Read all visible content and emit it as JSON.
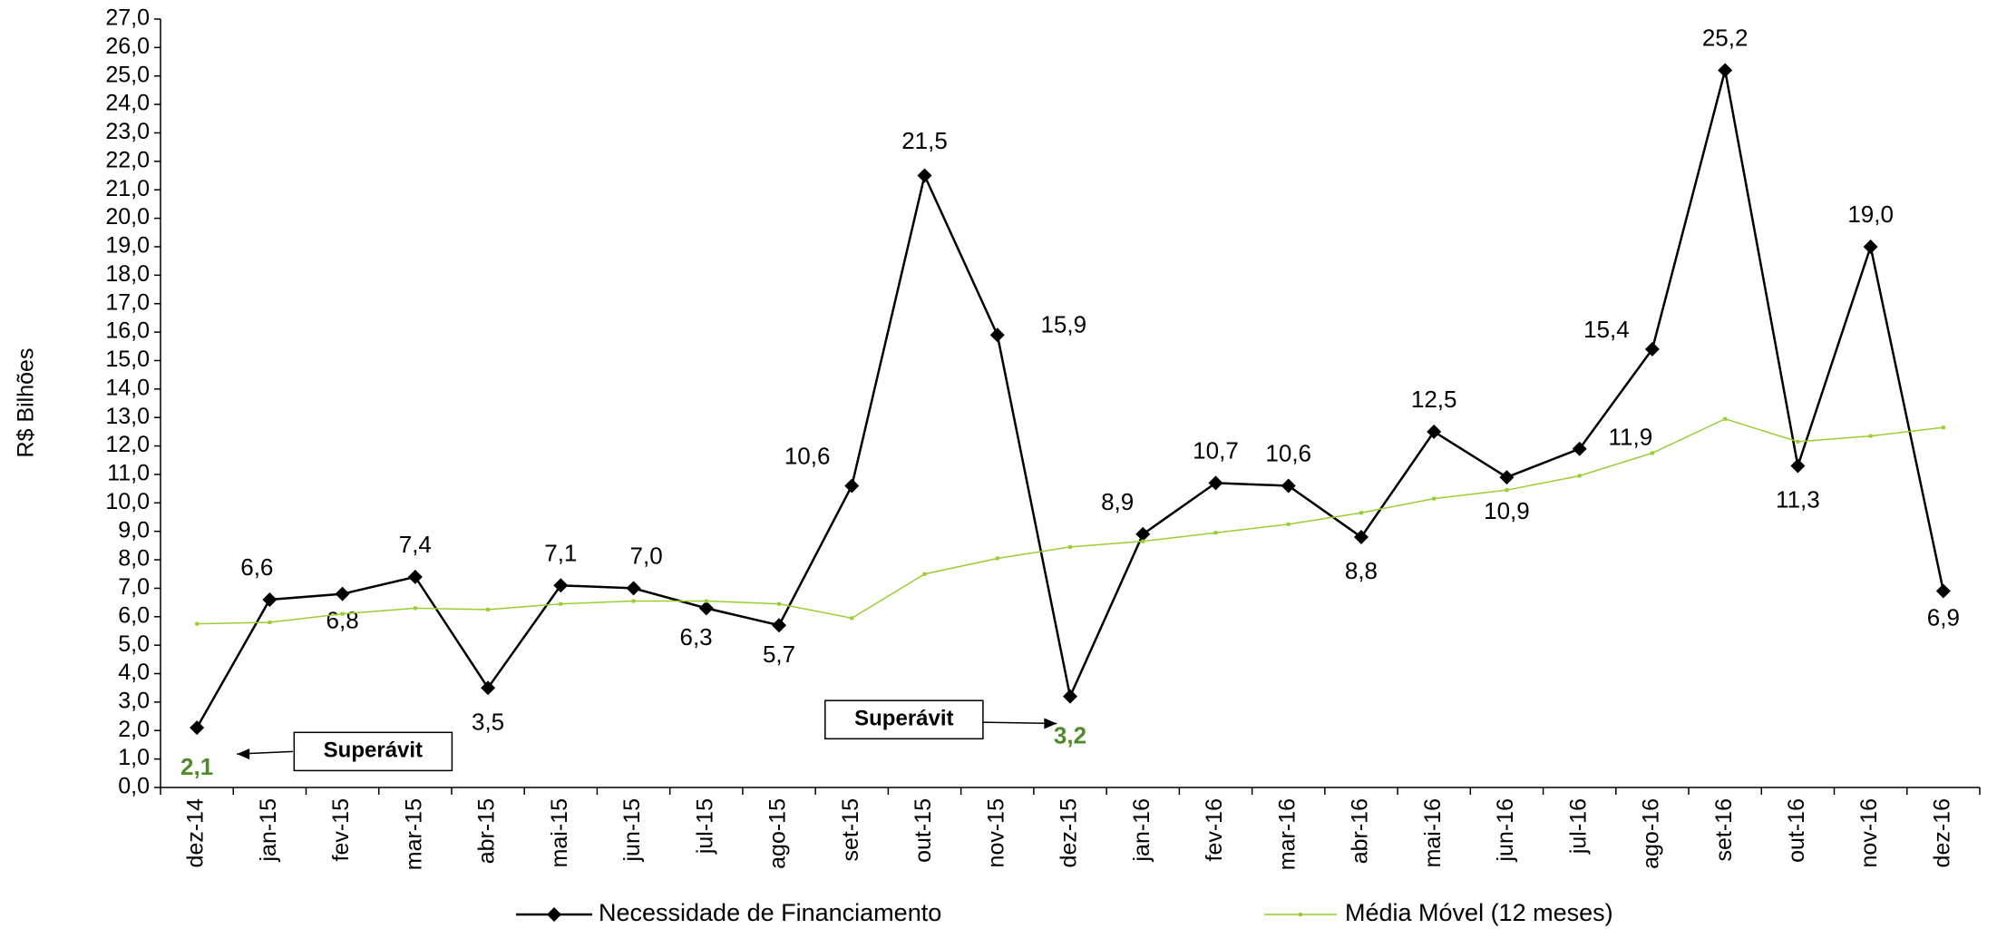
{
  "chart_data": {
    "type": "line",
    "y_label": "R$ Bilhões",
    "categories": [
      "dez-14",
      "jan-15",
      "fev-15",
      "mar-15",
      "abr-15",
      "mai-15",
      "jun-15",
      "jul-15",
      "ago-15",
      "set-15",
      "out-15",
      "nov-15",
      "dez-15",
      "jan-16",
      "fev-16",
      "mar-16",
      "abr-16",
      "mai-16",
      "jun-16",
      "jul-16",
      "ago-16",
      "set-16",
      "out-16",
      "nov-16",
      "dez-16"
    ],
    "series": [
      {
        "name": "Necessidade de Financiamento",
        "color": "#000000",
        "values": [
          2.1,
          6.6,
          6.8,
          7.4,
          3.5,
          7.1,
          7.0,
          6.3,
          5.7,
          10.6,
          21.5,
          15.9,
          3.2,
          8.9,
          10.7,
          10.6,
          8.8,
          12.5,
          10.9,
          11.9,
          15.4,
          25.2,
          11.3,
          19.0,
          6.9
        ],
        "value_labels": [
          "2,1",
          "6,6",
          "6,8",
          "7,4",
          "3,5",
          "7,1",
          "7,0",
          "6,3",
          "5,7",
          "10,6",
          "21,5",
          "15,9",
          "3,2",
          "8,9",
          "10,7",
          "10,6",
          "8,8",
          "12,5",
          "10,9",
          "11,9",
          "15,4",
          "25,2",
          "11,3",
          "19,0",
          "6,9"
        ]
      },
      {
        "name": "Média Móvel (12 meses)",
        "color": "#9acd32",
        "values": [
          5.75,
          5.8,
          6.1,
          6.3,
          6.25,
          6.45,
          6.55,
          6.55,
          6.45,
          5.95,
          7.5,
          8.05,
          8.45,
          8.65,
          8.95,
          9.25,
          9.65,
          10.15,
          10.45,
          10.95,
          11.75,
          12.95,
          12.15,
          12.35,
          12.65
        ]
      }
    ],
    "annotations": [
      "Superávit",
      "Superávit"
    ],
    "ylim": [
      0,
      27
    ],
    "yticks": [
      {
        "value": 0,
        "label": "0,0"
      },
      {
        "value": 1,
        "label": "1,0"
      },
      {
        "value": 2,
        "label": "2,0"
      },
      {
        "value": 3,
        "label": "3,0"
      },
      {
        "value": 4,
        "label": "4,0"
      },
      {
        "value": 5,
        "label": "5,0"
      },
      {
        "value": 6,
        "label": "6,0"
      },
      {
        "value": 7,
        "label": "7,0"
      },
      {
        "value": 8,
        "label": "8,0"
      },
      {
        "value": 9,
        "label": "9,0"
      },
      {
        "value": 10,
        "label": "10,0"
      },
      {
        "value": 11,
        "label": "11,0"
      },
      {
        "value": 12,
        "label": "12,0"
      },
      {
        "value": 13,
        "label": "13,0"
      },
      {
        "value": 14,
        "label": "14,0"
      },
      {
        "value": 15,
        "label": "15,0"
      },
      {
        "value": 16,
        "label": "16,0"
      },
      {
        "value": 17,
        "label": "17,0"
      },
      {
        "value": 18,
        "label": "18,0"
      },
      {
        "value": 19,
        "label": "19,0"
      },
      {
        "value": 20,
        "label": "20,0"
      },
      {
        "value": 21,
        "label": "21,0"
      },
      {
        "value": 22,
        "label": "22,0"
      },
      {
        "value": 23,
        "label": "23,0"
      },
      {
        "value": 24,
        "label": "24,0"
      },
      {
        "value": 25,
        "label": "25,0"
      },
      {
        "value": 26,
        "label": "26,0"
      },
      {
        "value": 27,
        "label": "27,0"
      }
    ],
    "grid": false
  }
}
